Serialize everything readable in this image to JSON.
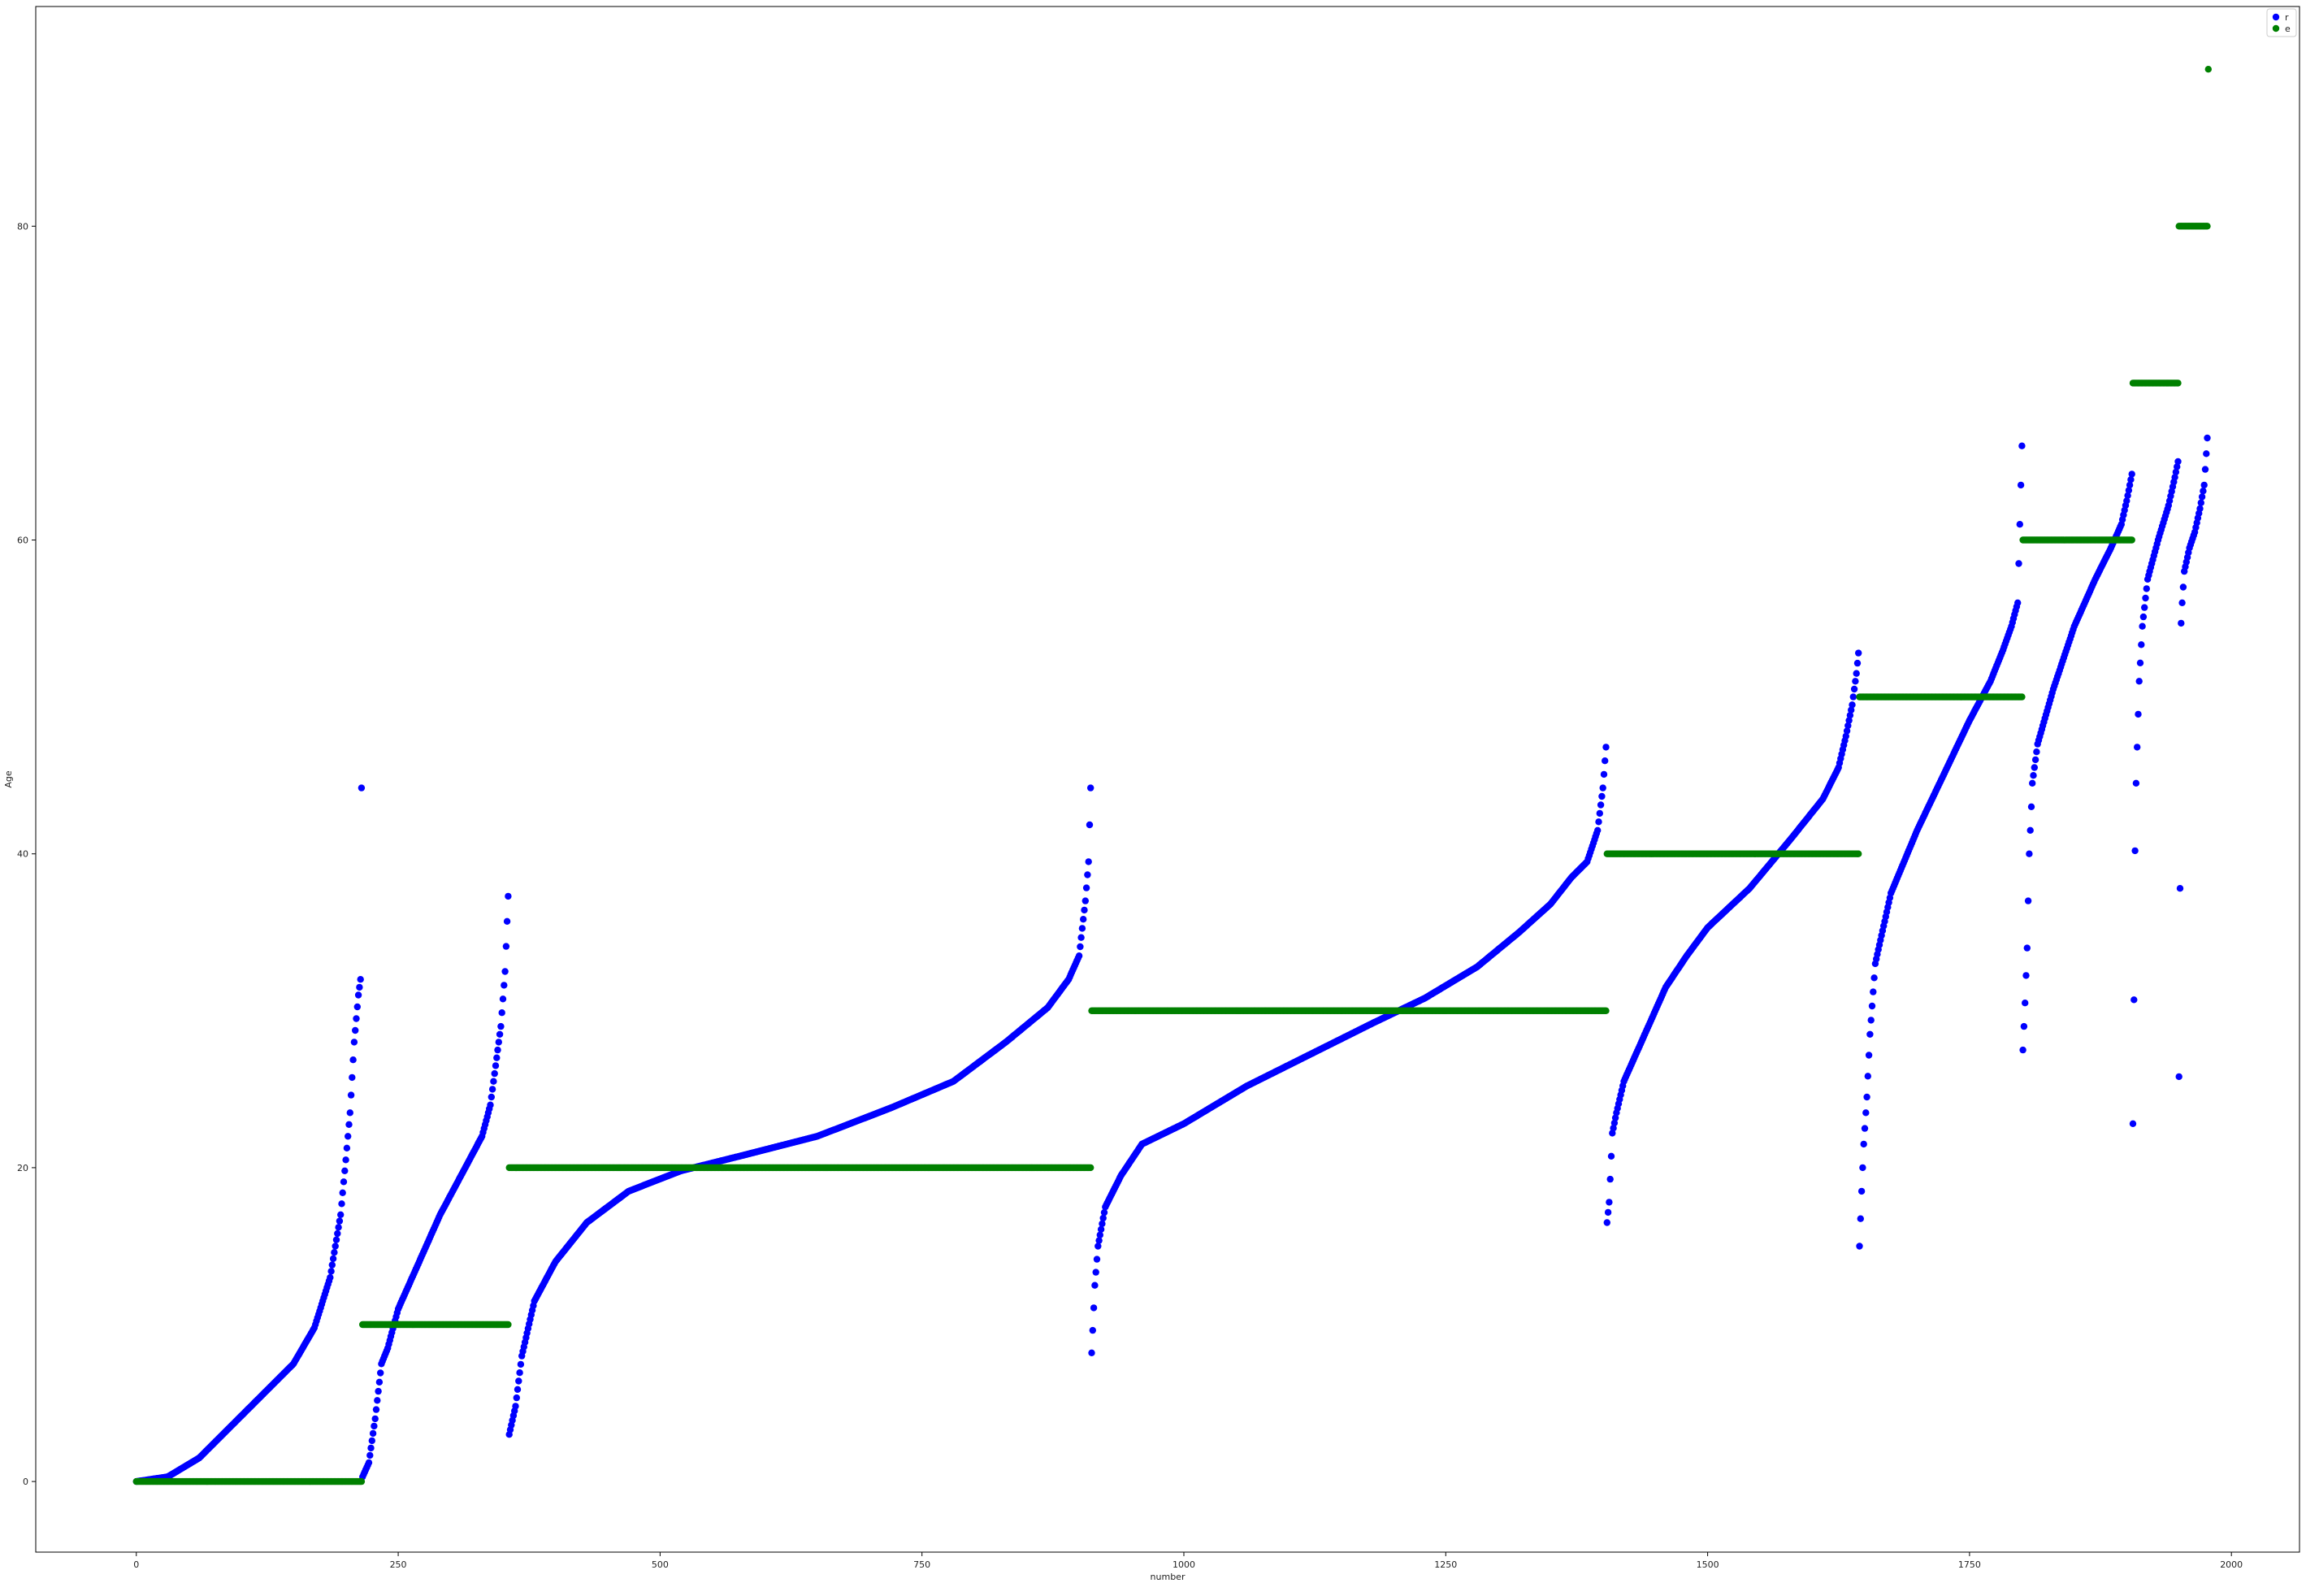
{
  "chart_data": {
    "type": "scatter",
    "title": "",
    "xlabel": "number",
    "ylabel": "Age",
    "xlim": [
      -96,
      2065
    ],
    "ylim": [
      -4.5,
      94
    ],
    "xticks": [
      0,
      250,
      500,
      750,
      1000,
      1250,
      1500,
      1750,
      2000
    ],
    "yticks": [
      0,
      20,
      40,
      60,
      80
    ],
    "grid": false,
    "legend": {
      "position": "top-right",
      "entries": [
        "r",
        "e"
      ]
    },
    "series": [
      {
        "name": "r",
        "color": "#0000ff",
        "marker": "circle",
        "segments": [
          {
            "x_range": [
              0,
              216
            ],
            "count": 216,
            "profile_x": [
              0,
              30,
              60,
              90,
              120,
              150,
              170,
              185,
              195,
              200,
              204,
              208,
              212,
              214,
              215
            ],
            "profile_y": [
              0,
              0.3,
              1.5,
              3.5,
              5.5,
              7.5,
              9.8,
              13,
              17,
              20.5,
              23.5,
              28,
              31,
              32,
              44.2
            ]
          },
          {
            "x_range": [
              216,
              356
            ],
            "count": 140,
            "profile_x": [
              216,
              222,
              228,
              234,
              240,
              250,
              270,
              290,
              310,
              330,
              338,
              343,
              348,
              352,
              355
            ],
            "profile_y": [
              0.3,
              1.2,
              4,
              7.5,
              8.5,
              11,
              14,
              17,
              19.5,
              22,
              24,
              26.5,
              29,
              32.5,
              37.3
            ]
          },
          {
            "x_range": [
              356,
              912
            ],
            "count": 556,
            "profile_x": [
              356,
              362,
              368,
              380,
              400,
              430,
              470,
              520,
              580,
              650,
              720,
              780,
              830,
              870,
              890,
              900,
              906,
              909,
              911
            ],
            "profile_y": [
              3,
              4.8,
              8,
              11.5,
              14,
              16.5,
              18.5,
              19.8,
              20.8,
              22,
              23.8,
              25.5,
              28,
              30.2,
              32,
              33.5,
              37,
              39.5,
              44.2
            ]
          },
          {
            "x_range": [
              912,
              1404
            ],
            "count": 492,
            "profile_x": [
              912,
              915,
              918,
              925,
              940,
              960,
              1000,
              1060,
              1120,
              1180,
              1230,
              1280,
              1320,
              1350,
              1370,
              1385,
              1395,
              1400,
              1403
            ],
            "profile_y": [
              8.2,
              12.5,
              15,
              17.5,
              19.5,
              21.5,
              22.8,
              25.2,
              27.2,
              29.2,
              30.8,
              32.8,
              35,
              36.8,
              38.5,
              39.5,
              41.5,
              44.2,
              46.8
            ]
          },
          {
            "x_range": [
              1404,
              1645
            ],
            "count": 241,
            "profile_x": [
              1404,
              1406,
              1409,
              1413,
              1420,
              1440,
              1460,
              1480,
              1500,
              1540,
              1580,
              1610,
              1625,
              1632,
              1638,
              1642,
              1644
            ],
            "profile_y": [
              16.5,
              17.8,
              22.2,
              23.5,
              25.5,
              28.5,
              31.5,
              33.5,
              35.3,
              37.8,
              41,
              43.5,
              45.5,
              47.5,
              49.5,
              51.5,
              52.8
            ]
          },
          {
            "x_range": [
              1645,
              1801
            ],
            "count": 156,
            "profile_x": [
              1645,
              1647,
              1649,
              1652,
              1655,
              1660,
              1675,
              1700,
              1725,
              1750,
              1770,
              1782,
              1790,
              1796,
              1800
            ],
            "profile_y": [
              15,
              18.5,
              21.5,
              24.5,
              28.5,
              33,
              37.5,
              41.5,
              45,
              48.5,
              51,
              53,
              54.5,
              56,
              66
            ]
          },
          {
            "x_range": [
              1801,
              1906
            ],
            "count": 105,
            "profile_x": [
              1801,
              1803,
              1805,
              1807,
              1810,
              1815,
              1830,
              1850,
              1870,
              1885,
              1895,
              1900,
              1903,
              1905
            ],
            "profile_y": [
              27.5,
              30.5,
              34,
              40,
              44.5,
              47,
              50.5,
              54.5,
              57.5,
              59.5,
              61,
              62.5,
              63.5,
              64.2
            ]
          },
          {
            "x_range": [
              1906,
              1950
            ],
            "count": 44,
            "profile_x": [
              1906,
              1907,
              1908,
              1909,
              1910,
              1912,
              1915,
              1920,
              1930,
              1940,
              1946,
              1949
            ],
            "profile_y": [
              22.8,
              30.7,
              40.2,
              44.5,
              46.8,
              51,
              54.5,
              57.5,
              60,
              62.2,
              64,
              65
            ]
          },
          {
            "x_range": [
              1950,
              1978
            ],
            "count": 28,
            "profile_x": [
              1950,
              1951,
              1952,
              1953,
              1955,
              1960,
              1965,
              1970,
              1974,
              1977
            ],
            "profile_y": [
              25.8,
              37.8,
              54.7,
              56,
              58,
              59.5,
              60.5,
              62,
              63.5,
              66.5
            ]
          }
        ]
      },
      {
        "name": "e",
        "color": "#008000",
        "marker": "circle",
        "segments": [
          {
            "x_range": [
              0,
              216
            ],
            "y": 0
          },
          {
            "x_range": [
              216,
              356
            ],
            "y": 10
          },
          {
            "x_range": [
              356,
              912
            ],
            "y": 20
          },
          {
            "x_range": [
              912,
              1404
            ],
            "y": 30
          },
          {
            "x_range": [
              1404,
              1645
            ],
            "y": 40
          },
          {
            "x_range": [
              1645,
              1801
            ],
            "y": 50
          },
          {
            "x_range": [
              1801,
              1906
            ],
            "y": 60
          },
          {
            "x_range": [
              1906,
              1950
            ],
            "y": 70
          },
          {
            "x_range": [
              1950,
              1978
            ],
            "y": 80
          },
          {
            "x_range": [
              1978,
              1979
            ],
            "y": 90
          }
        ]
      }
    ]
  }
}
